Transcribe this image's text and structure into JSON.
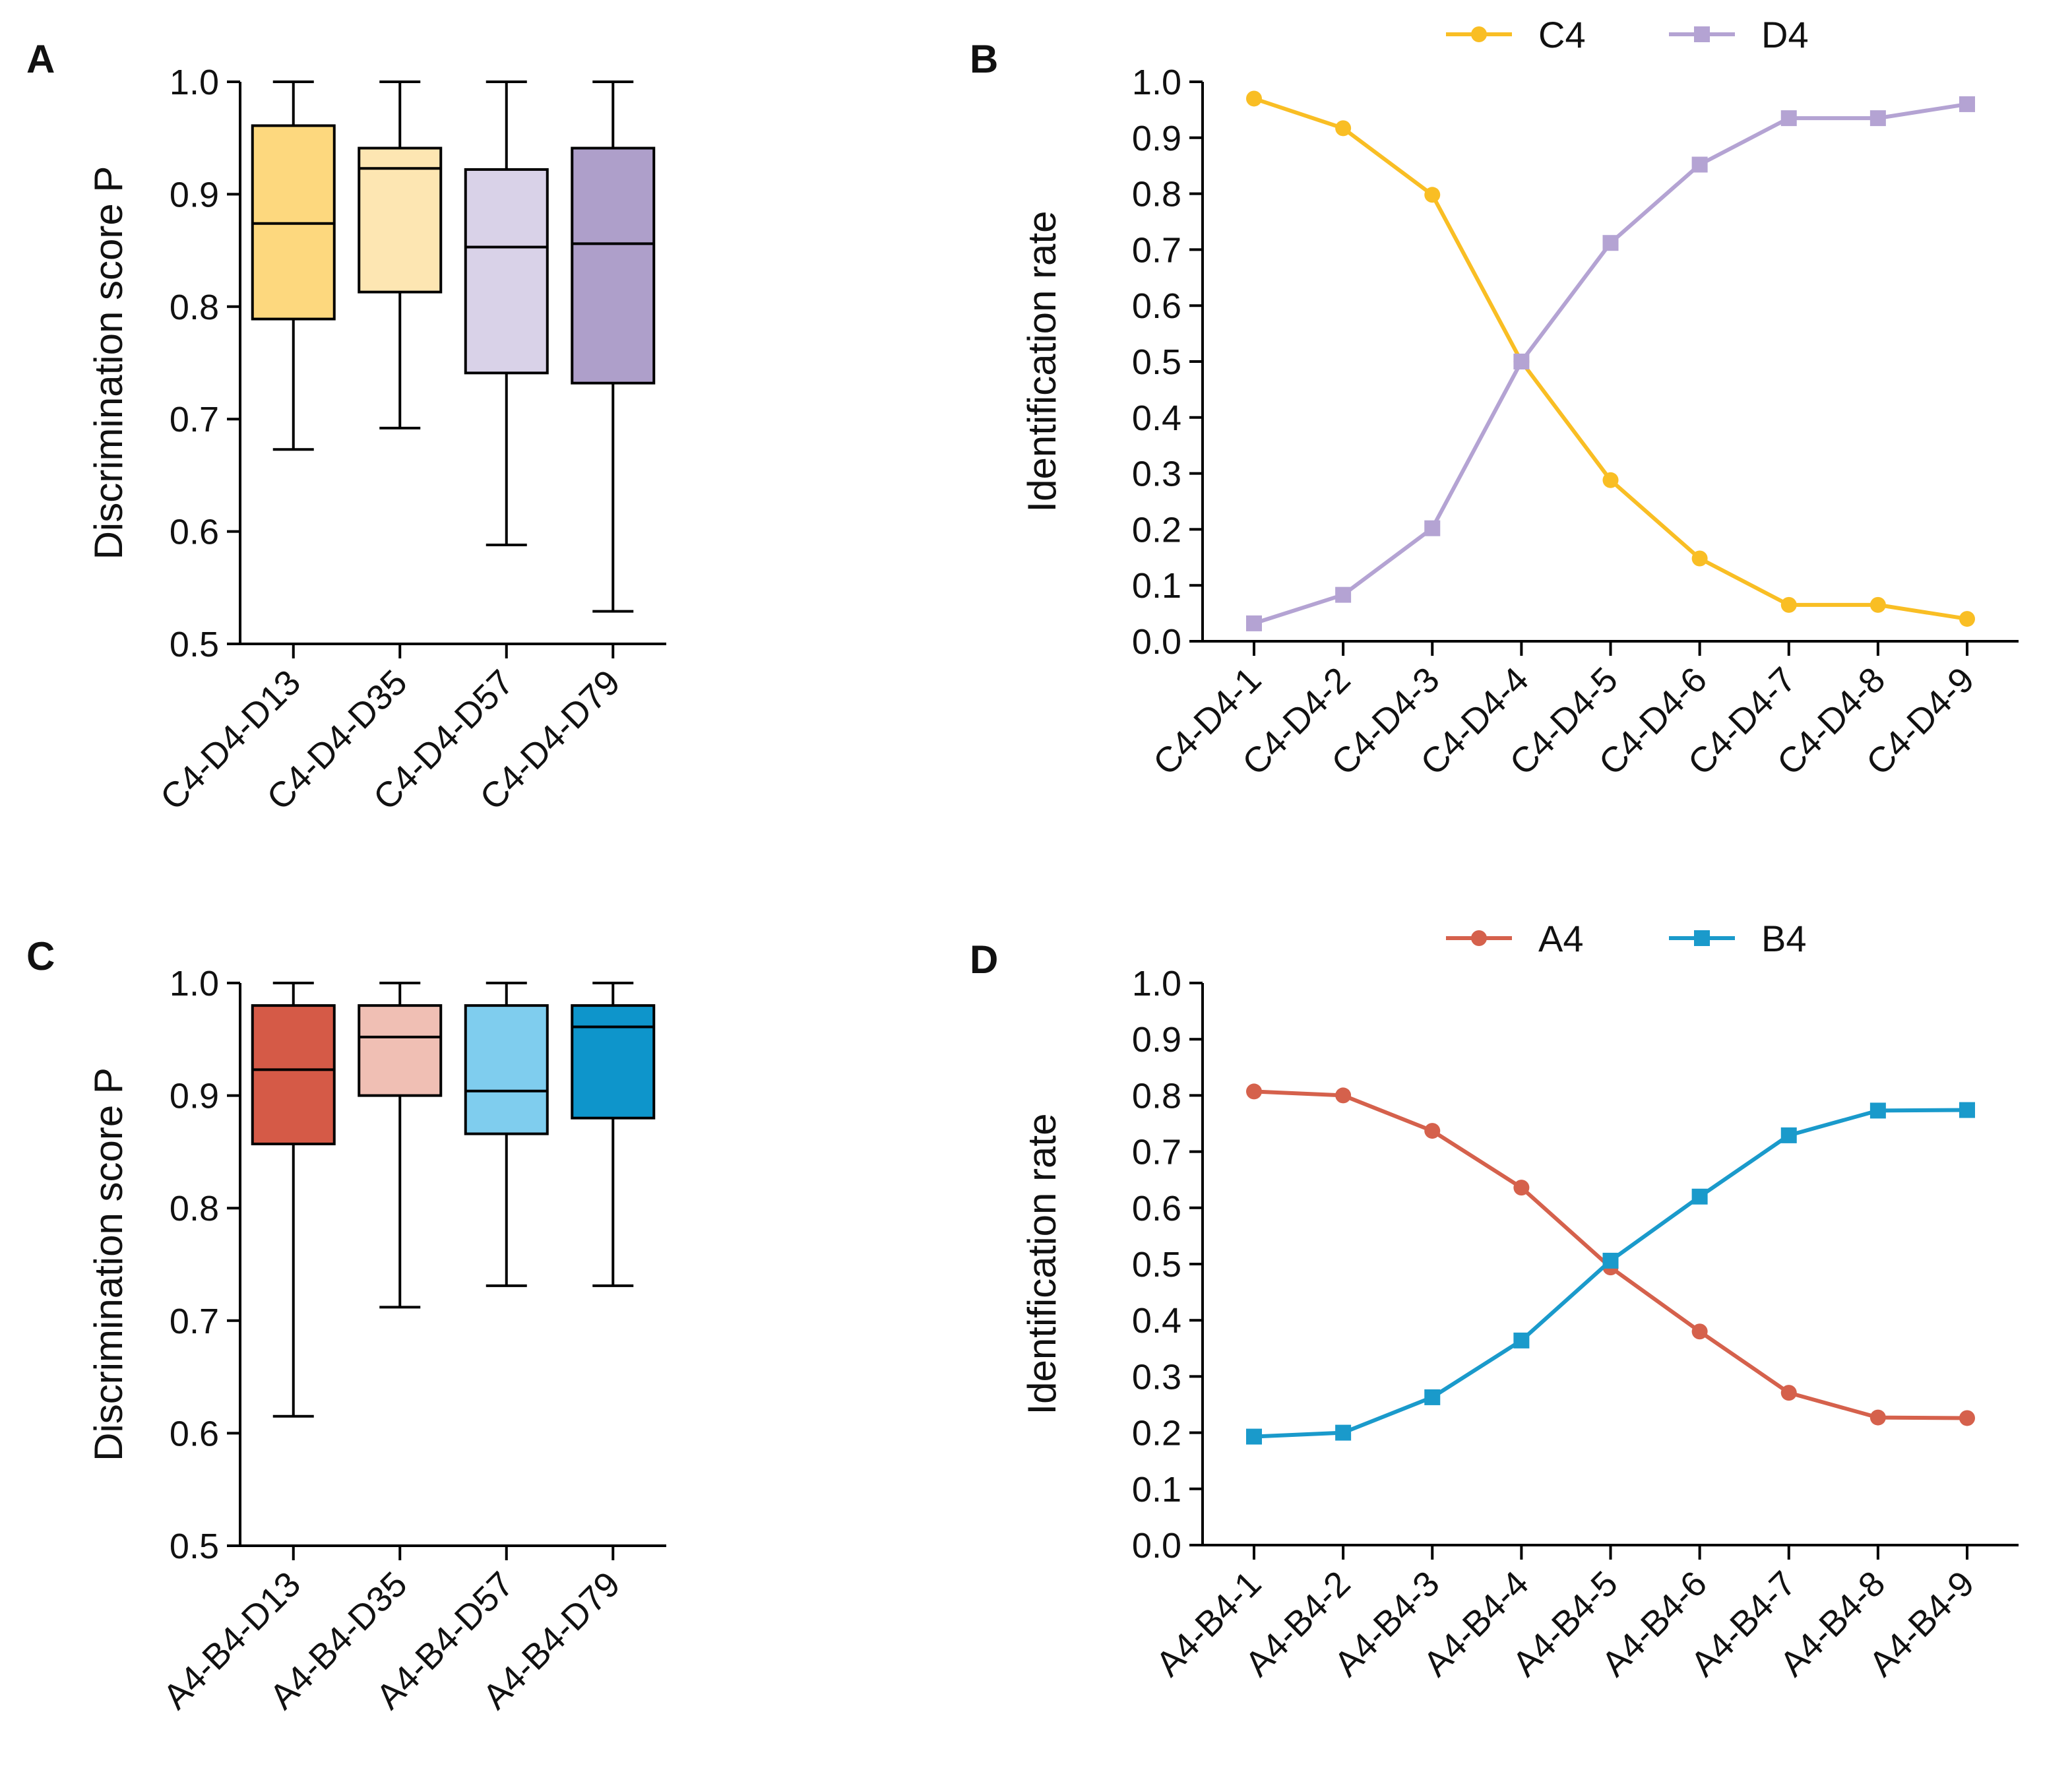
{
  "chart_data": [
    {
      "panel": "A",
      "type": "box",
      "ylabel": "Discrimination score P",
      "ylim": [
        0.5,
        1.0
      ],
      "yticks": [
        "0.5",
        "0.6",
        "0.7",
        "0.8",
        "0.9",
        "1.0"
      ],
      "categories": [
        "C4-D4-D13",
        "C4-D4-D35",
        "C4-D4-D57",
        "C4-D4-D79"
      ],
      "boxes": [
        {
          "min": 0.673,
          "q1": 0.789,
          "median": 0.874,
          "q3": 0.961,
          "max": 1.0,
          "color": "#FDD87E"
        },
        {
          "min": 0.692,
          "q1": 0.813,
          "median": 0.923,
          "q3": 0.941,
          "max": 1.0,
          "color": "#FDE6B2"
        },
        {
          "min": 0.588,
          "q1": 0.741,
          "median": 0.853,
          "q3": 0.922,
          "max": 1.0,
          "color": "#D9D2E8"
        },
        {
          "min": 0.529,
          "q1": 0.732,
          "median": 0.856,
          "q3": 0.941,
          "max": 1.0,
          "color": "#AE9FCA"
        }
      ]
    },
    {
      "panel": "B",
      "type": "line",
      "ylabel": "Identification rate",
      "ylim": [
        0.0,
        1.0
      ],
      "yticks": [
        "0.0",
        "0.1",
        "0.2",
        "0.3",
        "0.4",
        "0.5",
        "0.6",
        "0.7",
        "0.8",
        "0.9",
        "1.0"
      ],
      "categories": [
        "C4-D4-1",
        "C4-D4-2",
        "C4-D4-3",
        "C4-D4-4",
        "C4-D4-5",
        "C4-D4-6",
        "C4-D4-7",
        "C4-D4-8",
        "C4-D4-9"
      ],
      "series": [
        {
          "name": "C4",
          "marker": "circle",
          "color": "#F9BE24",
          "values": [
            0.97,
            0.917,
            0.798,
            0.5,
            0.288,
            0.148,
            0.065,
            0.065,
            0.04
          ]
        },
        {
          "name": "D4",
          "marker": "square",
          "color": "#B4A3D3",
          "values": [
            0.032,
            0.083,
            0.202,
            0.5,
            0.712,
            0.852,
            0.935,
            0.935,
            0.96
          ]
        }
      ]
    },
    {
      "panel": "C",
      "type": "box",
      "ylabel": "Discrimination score P",
      "ylim": [
        0.5,
        1.0
      ],
      "yticks": [
        "0.5",
        "0.6",
        "0.7",
        "0.8",
        "0.9",
        "1.0"
      ],
      "categories": [
        "A4-B4-D13",
        "A4-B4-D35",
        "A4-B4-D57",
        "A4-B4-D79"
      ],
      "boxes": [
        {
          "min": 0.615,
          "q1": 0.857,
          "median": 0.923,
          "q3": 0.98,
          "max": 1.0,
          "color": "#D55A47"
        },
        {
          "min": 0.712,
          "q1": 0.9,
          "median": 0.952,
          "q3": 0.98,
          "max": 1.0,
          "color": "#F0BFB4"
        },
        {
          "min": 0.731,
          "q1": 0.866,
          "median": 0.904,
          "q3": 0.98,
          "max": 1.0,
          "color": "#7FCDEE"
        },
        {
          "min": 0.731,
          "q1": 0.88,
          "median": 0.961,
          "q3": 0.98,
          "max": 1.0,
          "color": "#0E95CB"
        }
      ]
    },
    {
      "panel": "D",
      "type": "line",
      "ylabel": "Identification rate",
      "ylim": [
        0.0,
        1.0
      ],
      "yticks": [
        "0.0",
        "0.1",
        "0.2",
        "0.3",
        "0.4",
        "0.5",
        "0.6",
        "0.7",
        "0.8",
        "0.9",
        "1.0"
      ],
      "categories": [
        "A4-B4-1",
        "A4-B4-2",
        "A4-B4-3",
        "A4-B4-4",
        "A4-B4-5",
        "A4-B4-6",
        "A4-B4-7",
        "A4-B4-8",
        "A4-B4-9"
      ],
      "series": [
        {
          "name": "A4",
          "marker": "circle",
          "color": "#D5614C",
          "values": [
            0.807,
            0.8,
            0.737,
            0.636,
            0.494,
            0.38,
            0.271,
            0.227,
            0.226
          ]
        },
        {
          "name": "B4",
          "marker": "square",
          "color": "#1A9ACB",
          "values": [
            0.193,
            0.2,
            0.263,
            0.364,
            0.506,
            0.62,
            0.729,
            0.773,
            0.774
          ]
        }
      ]
    }
  ]
}
